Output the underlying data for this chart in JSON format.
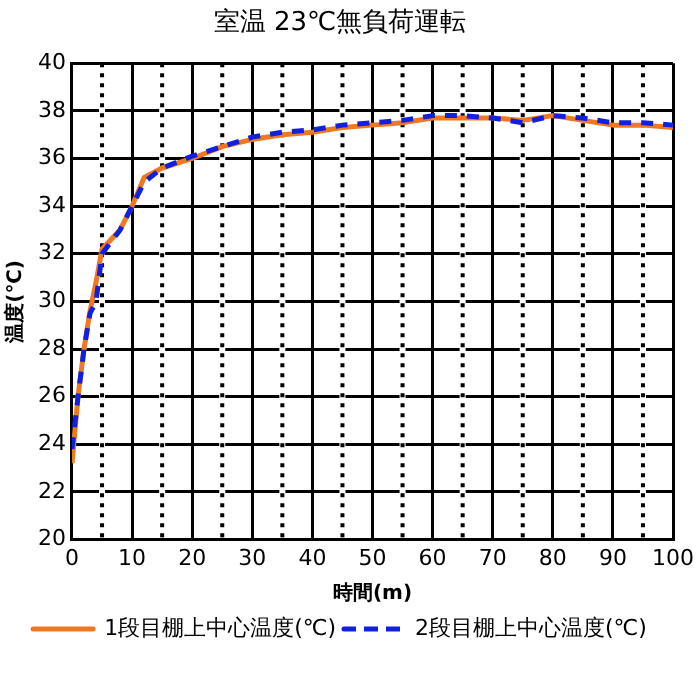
{
  "chart_data": {
    "type": "line",
    "title": "室温 23℃無負荷運転",
    "xlabel": "時間(m)",
    "ylabel": "温度(℃)",
    "xlim": [
      0,
      100
    ],
    "ylim": [
      20,
      40
    ],
    "xticks": [
      0,
      {
        "value": 5,
        "label": null
      },
      10,
      {
        "value": 15,
        "label": null
      },
      20,
      {
        "value": 25,
        "label": null
      },
      30,
      {
        "value": 35,
        "label": null
      },
      40,
      {
        "value": 45,
        "label": null
      },
      50,
      {
        "value": 55,
        "label": null
      },
      60,
      {
        "value": 65,
        "label": null
      },
      70,
      {
        "value": 75,
        "label": null
      },
      80,
      {
        "value": 85,
        "label": null
      },
      90,
      {
        "value": 95,
        "label": null
      },
      100
    ],
    "yticks": [
      20,
      22,
      24,
      26,
      28,
      30,
      32,
      34,
      36,
      38,
      40
    ],
    "grid": true,
    "legend": "bottom",
    "marker": "none",
    "x": [
      0,
      1,
      2,
      3,
      4,
      5,
      8,
      10,
      12,
      15,
      20,
      25,
      30,
      35,
      40,
      45,
      50,
      55,
      60,
      65,
      70,
      75,
      80,
      85,
      90,
      95,
      100
    ],
    "series": [
      {
        "name": "1段目棚上中心温度(℃)",
        "color": "#f07820",
        "line_style": "solid",
        "values": [
          23.2,
          26,
          28,
          29.6,
          30.8,
          32.2,
          33,
          34,
          35.2,
          35.6,
          36,
          36.5,
          36.8,
          37,
          37.1,
          37.3,
          37.4,
          37.5,
          37.7,
          37.7,
          37.7,
          37.6,
          37.8,
          37.6,
          37.4,
          37.4,
          37.3
        ]
      },
      {
        "name": "2段目棚上中心温度(℃)",
        "color": "#1020e0",
        "line_style": "dashed",
        "values": [
          23.8,
          26,
          28,
          29.5,
          30,
          32,
          33,
          34,
          35,
          35.6,
          36.1,
          36.5,
          36.9,
          37.1,
          37.2,
          37.4,
          37.5,
          37.6,
          37.8,
          37.8,
          37.7,
          37.5,
          37.8,
          37.7,
          37.5,
          37.5,
          37.4
        ]
      }
    ]
  }
}
